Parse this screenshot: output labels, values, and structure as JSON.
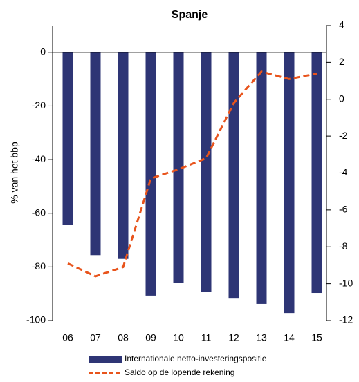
{
  "chart_data": {
    "type": "bar-line",
    "title": "Spanje",
    "y_label": "% van het bbp",
    "categories": [
      "06",
      "07",
      "08",
      "09",
      "10",
      "11",
      "12",
      "13",
      "14",
      "15"
    ],
    "series": [
      {
        "name": "Internationale netto-investeringspositie",
        "type": "bar",
        "color": "#2e3575",
        "axis": "y",
        "values": [
          -64.3,
          -75.6,
          -77,
          -90.7,
          -86,
          -89.2,
          -91.8,
          -93.8,
          -97.2,
          -89.7
        ]
      },
      {
        "name": "Saldo op de lopende rekening",
        "type": "line",
        "color": "#e8541c",
        "axis": "y2",
        "dashed": true,
        "values": [
          -8.9,
          -9.6,
          -9.1,
          -4.3,
          -3.8,
          -3.2,
          -0.2,
          1.5,
          1.1,
          1.4
        ]
      }
    ],
    "ylim": [
      -100,
      10
    ],
    "yticks": [
      -100,
      -80,
      -60,
      -40,
      -20,
      0
    ],
    "y2lim": [
      -12,
      4
    ],
    "y2ticks": [
      -12,
      -10,
      -8,
      -6,
      -4,
      -2,
      0,
      2,
      4
    ],
    "grid": false,
    "legend": "bottom"
  }
}
